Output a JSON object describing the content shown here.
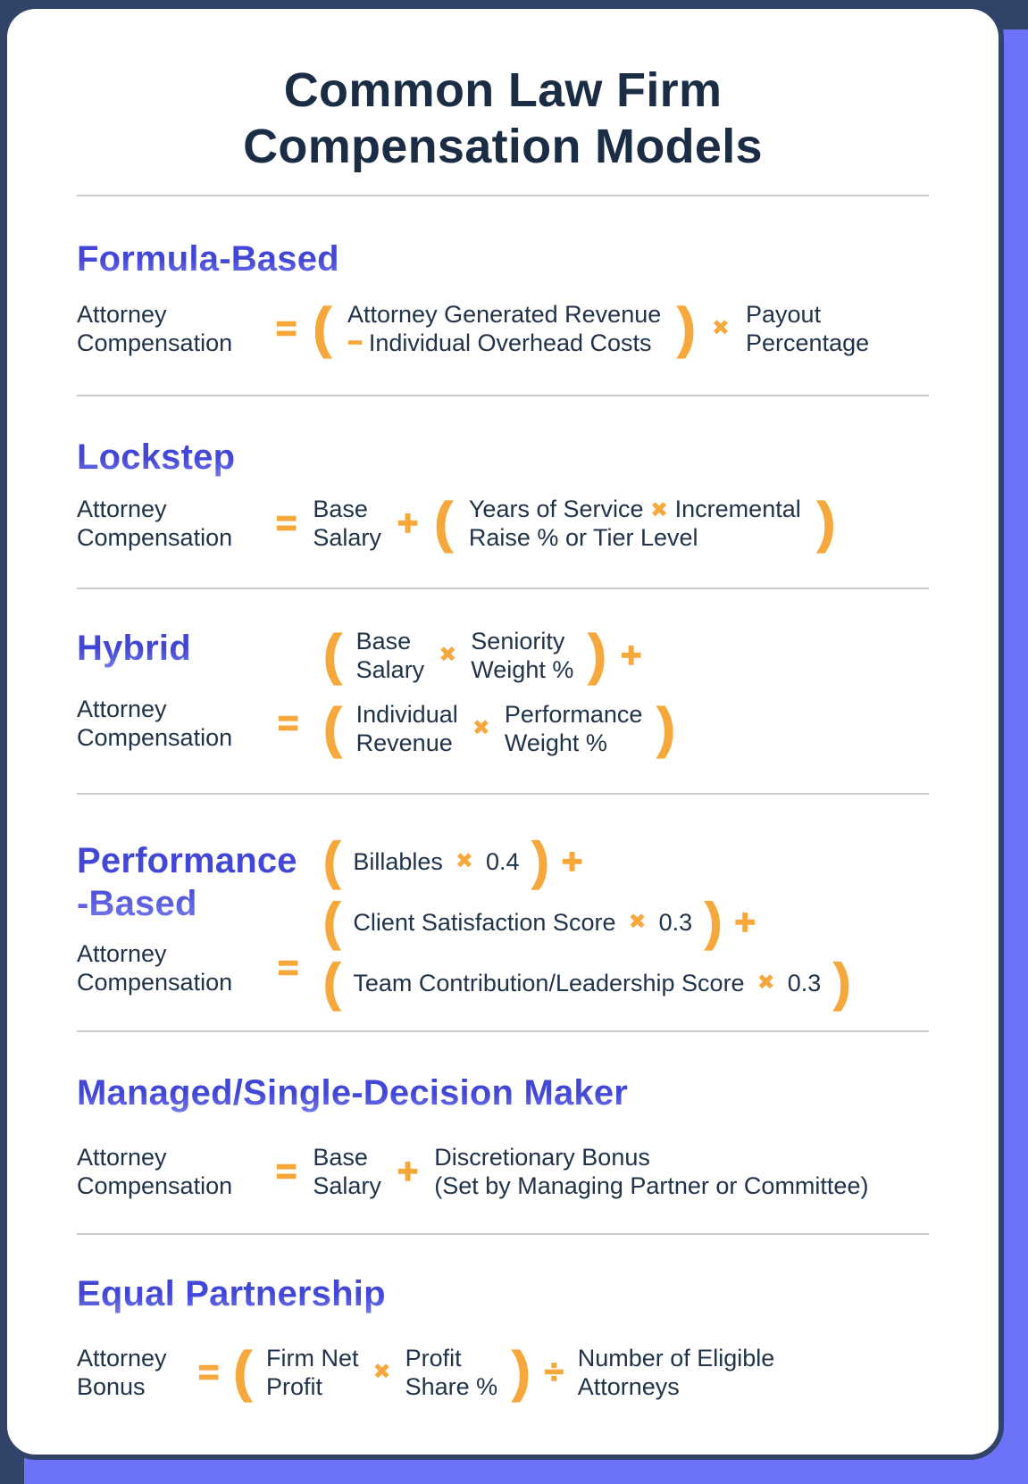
{
  "title": {
    "line1": "Common Law Firm",
    "line2": "Compensation Models"
  },
  "ops": {
    "equals": "=",
    "plus": "+",
    "times": "✖",
    "minus": "−",
    "divide": "÷",
    "open_paren": "(",
    "close_paren": ")"
  },
  "colors": {
    "frame_navy": "#32436a",
    "accent_periwinkle": "#6d73f8",
    "card_white": "#ffffff",
    "title_navy": "#1b2d44",
    "formula_text": "#20334a",
    "heading_purple": "#5254d9",
    "operator_orange": "#f6a83c",
    "divider_gray": "#cbcbcb"
  },
  "sections": {
    "formula_based": {
      "heading": "Formula-Based",
      "lhs_line1": "Attorney",
      "lhs_line2": "Compensation",
      "group_line1": "Attorney Generated Revenue",
      "group_line2": "Individual Overhead Costs",
      "rhs_line1": "Payout",
      "rhs_line2": "Percentage"
    },
    "lockstep": {
      "heading": "Lockstep",
      "lhs_line1": "Attorney",
      "lhs_line2": "Compensation",
      "term1_line1": "Base",
      "term1_line2": "Salary",
      "group_line1_a": "Years of Service",
      "group_line1_b": "Incremental",
      "group_line2": "Raise % or Tier Level"
    },
    "hybrid": {
      "heading": "Hybrid",
      "lhs_line1": "Attorney",
      "lhs_line2": "Compensation",
      "g1_f1_line1": "Base",
      "g1_f1_line2": "Salary",
      "g1_f2_line1": "Seniority",
      "g1_f2_line2": "Weight %",
      "g2_f1_line1": "Individual",
      "g2_f1_line2": "Revenue",
      "g2_f2_line1": "Performance",
      "g2_f2_line2": "Weight %"
    },
    "performance_based": {
      "heading_line1": "Performance",
      "heading_line2": "-Based",
      "lhs_line1": "Attorney",
      "lhs_line2": "Compensation",
      "r1_text": "Billables",
      "r1_value": "0.4",
      "r2_text": "Client Satisfaction Score",
      "r2_value": "0.3",
      "r3_text": "Team Contribution/Leadership Score",
      "r3_value": "0.3"
    },
    "managed": {
      "heading": "Managed/Single-Decision Maker",
      "lhs_line1": "Attorney",
      "lhs_line2": "Compensation",
      "term1_line1": "Base",
      "term1_line2": "Salary",
      "rhs_line1": "Discretionary Bonus",
      "rhs_line2": "(Set by Managing Partner or Committee)"
    },
    "equal_partnership": {
      "heading": "Equal Partnership",
      "lhs_line1": "Attorney",
      "lhs_line2": "Bonus",
      "f1_line1": "Firm Net",
      "f1_line2": "Profit",
      "f2_line1": "Profit",
      "f2_line2": "Share %",
      "rhs_line1": "Number of Eligible",
      "rhs_line2": "Attorneys"
    }
  }
}
